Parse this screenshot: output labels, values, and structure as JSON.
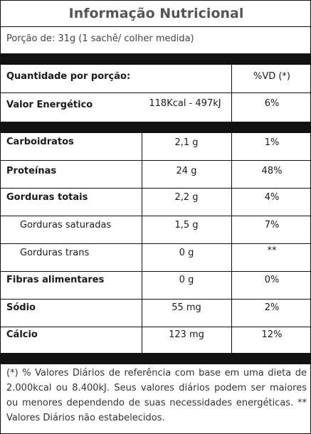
{
  "title": "Informação Nutricional",
  "portion": "Porção de: 31g (1 sachê/ colher medida)",
  "header": {
    "quantity": "Quantidade por porção:",
    "dv": "%VD (*)"
  },
  "energy": {
    "name": "Valor Energético",
    "amount": "118Kcal - 497kJ",
    "dv": "6%"
  },
  "nutrients": [
    {
      "name": "Carboidratos",
      "amount": "2,1 g",
      "dv": "1%"
    },
    {
      "name": "Proteínas",
      "amount": "24 g",
      "dv": "48%"
    },
    {
      "name": "Gorduras totais",
      "amount": "2,2 g",
      "dv": "4%"
    },
    {
      "name": "Gorduras saturadas",
      "amount": "1,5 g",
      "dv": "7%"
    },
    {
      "name": "Gorduras trans",
      "amount": "0 g",
      "dv": "**"
    },
    {
      "name": "Fibras alimentares",
      "amount": "0 g",
      "dv": "0%"
    },
    {
      "name": "Sódio",
      "amount": "55 mg",
      "dv": "2%"
    },
    {
      "name": "Cálcio",
      "amount": "123 mg",
      "dv": "12%"
    }
  ],
  "footnote": "(*) % Valores Diários de referência com base em uma dieta de 2.000kcal ou 8.400kJ. Seus valores diários podem ser maiores ou menores dependendo de suas necessidades energéticas. ** Valores Diários não estabelecidos."
}
